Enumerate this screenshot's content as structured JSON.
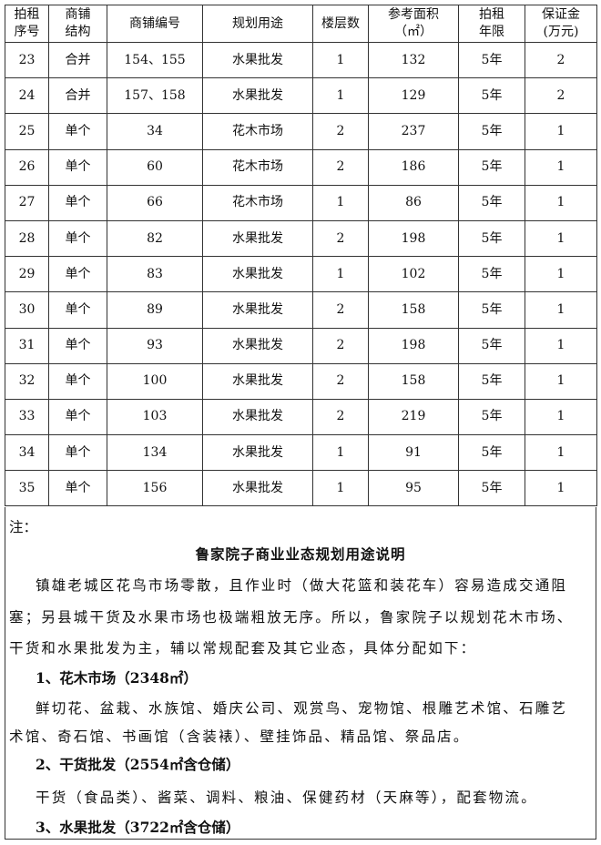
{
  "table": {
    "headers": [
      "拍租\n序号",
      "商铺\n结构",
      "商铺编号",
      "规划用途",
      "楼层数",
      "参考面积\n（㎡）",
      "拍租\n年限",
      "保证金\n(万元)"
    ],
    "rows": [
      [
        "23",
        "合并",
        "154、155",
        "水果批发",
        "1",
        "132",
        "5年",
        "2"
      ],
      [
        "24",
        "合并",
        "157、158",
        "水果批发",
        "1",
        "129",
        "5年",
        "2"
      ],
      [
        "25",
        "单个",
        "34",
        "花木市场",
        "2",
        "237",
        "5年",
        "1"
      ],
      [
        "26",
        "单个",
        "60",
        "花木市场",
        "2",
        "186",
        "5年",
        "1"
      ],
      [
        "27",
        "单个",
        "66",
        "花木市场",
        "1",
        "86",
        "5年",
        "1"
      ],
      [
        "28",
        "单个",
        "82",
        "水果批发",
        "2",
        "198",
        "5年",
        "1"
      ],
      [
        "29",
        "单个",
        "83",
        "水果批发",
        "1",
        "102",
        "5年",
        "1"
      ],
      [
        "30",
        "单个",
        "89",
        "水果批发",
        "2",
        "158",
        "5年",
        "1"
      ],
      [
        "31",
        "单个",
        "93",
        "水果批发",
        "2",
        "198",
        "5年",
        "1"
      ],
      [
        "32",
        "单个",
        "100",
        "水果批发",
        "2",
        "158",
        "5年",
        "1"
      ],
      [
        "33",
        "单个",
        "103",
        "水果批发",
        "2",
        "219",
        "5年",
        "1"
      ],
      [
        "34",
        "单个",
        "134",
        "水果批发",
        "1",
        "91",
        "5年",
        "1"
      ],
      [
        "35",
        "单个",
        "156",
        "水果批发",
        "1",
        "95",
        "5年",
        "1"
      ]
    ]
  },
  "note": {
    "label": "注：",
    "title": "鲁家院子商业业态规划用途说明",
    "para_lines": [
      "镇雄老城区花鸟市场零散，且作业时（做大花篮和装花车）容易造成交通阻",
      "塞；另县城干货及水果市场也极端粗放无序。所以，鲁家院子以规划花木市场、",
      "干货和水果批发为主，辅以常规配套及其它业态，具体分配如下："
    ],
    "item1_heading": "1、花木市场（2348㎡）",
    "item1_lines": [
      "鲜切花、盆栽、水族馆、婚庆公司、观赏鸟、宠物馆、根雕艺术馆、石雕艺",
      "术馆、奇石馆、书画馆（含装裱）、壁挂饰品、精品馆、祭品店。"
    ],
    "item2_heading": "2、干货批发（2554㎡含仓储）",
    "item2_line": "干货（食品类）、酱菜、调料、粮油、保健药材（天麻等），配套物流。",
    "item3_heading": "3、水果批发（3722㎡含仓储）"
  }
}
